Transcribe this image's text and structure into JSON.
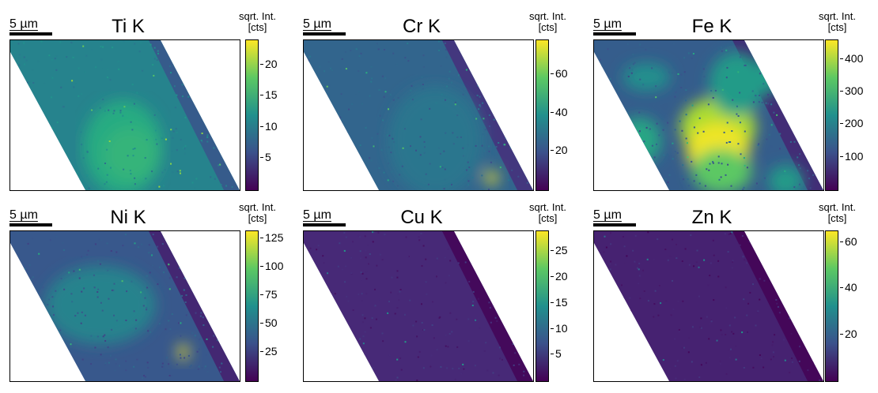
{
  "panels": [
    {
      "title": "Ti K",
      "scale": "5 µm",
      "cb_title_1": "sqrt. Int.",
      "cb_title_2": "[cts]",
      "ticks": [
        "20",
        "15",
        "10",
        "5"
      ],
      "tick_values": [
        20,
        15,
        10,
        5
      ],
      "cb_max": 24,
      "base_level": 0.45
    },
    {
      "title": "Cr K",
      "scale": "5 µm",
      "cb_title_1": "sqrt. Int.",
      "cb_title_2": "[cts]",
      "ticks": [
        "60",
        "40",
        "20"
      ],
      "tick_values": [
        60,
        40,
        20
      ],
      "cb_max": 78,
      "base_level": 0.33
    },
    {
      "title": "Fe K",
      "scale": "5 µm",
      "cb_title_1": "sqrt. Int.",
      "cb_title_2": "[cts]",
      "ticks": [
        "400",
        "300",
        "200",
        "100"
      ],
      "tick_values": [
        400,
        300,
        200,
        100
      ],
      "cb_max": 460,
      "base_level": 0.3
    },
    {
      "title": "Ni K",
      "scale": "5 µm",
      "cb_title_1": "sqrt. Int.",
      "cb_title_2": "[cts]",
      "ticks": [
        "125",
        "100",
        "75",
        "50",
        "25"
      ],
      "tick_values": [
        125,
        100,
        75,
        50,
        25
      ],
      "cb_max": 132,
      "base_level": 0.28
    },
    {
      "title": "Cu K",
      "scale": "5 µm",
      "cb_title_1": "sqrt. Int.",
      "cb_title_2": "[cts]",
      "ticks": [
        "25",
        "20",
        "15",
        "10",
        "5"
      ],
      "tick_values": [
        25,
        20,
        15,
        10,
        5
      ],
      "cb_max": 29,
      "base_level": 0.12
    },
    {
      "title": "Zn K",
      "scale": "5 µm",
      "cb_title_1": "sqrt. Int.",
      "cb_title_2": "[cts]",
      "ticks": [
        "60",
        "40",
        "20"
      ],
      "tick_values": [
        60,
        40,
        20
      ],
      "cb_max": 65,
      "base_level": 0.1
    }
  ],
  "colors": {
    "viridis_low": "#440154",
    "viridis_mid": "#21918c",
    "viridis_high": "#fde725"
  }
}
